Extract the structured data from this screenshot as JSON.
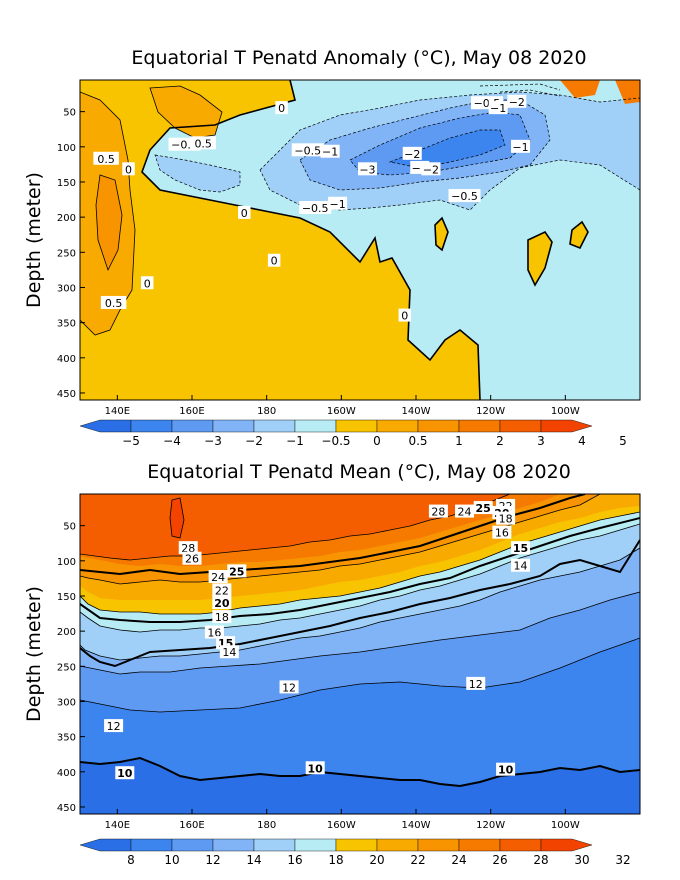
{
  "colors": {
    "anomaly_levels": [
      "#2a6fe6",
      "#3d85ee",
      "#5e9af2",
      "#80b4f6",
      "#a0d0f8",
      "#b8ecf5",
      "#f8c400",
      "#f8aa00",
      "#f79400",
      "#f67a00",
      "#f45e00",
      "#f24400"
    ],
    "mean_levels": [
      "#2a6fe6",
      "#3d85ee",
      "#5e9af2",
      "#80b4f6",
      "#a0d0f8",
      "#b8ecf5",
      "#f8c400",
      "#f8aa00",
      "#f79400",
      "#f67a00",
      "#f45e00",
      "#f24400"
    ]
  },
  "chart_data": [
    {
      "type": "heatmap",
      "title": "Equatorial T Penatd Anomaly (°C), May 08 2020",
      "xlabel": "",
      "ylabel": "Depth (meter)",
      "x_ticks": [
        "140E",
        "160E",
        "180",
        "160W",
        "140W",
        "120W",
        "100W"
      ],
      "x_tick_values": [
        140,
        160,
        180,
        200,
        220,
        240,
        260
      ],
      "xlim": [
        130,
        280
      ],
      "y_ticks": [
        "50",
        "100",
        "150",
        "200",
        "250",
        "300",
        "350",
        "400",
        "450"
      ],
      "y_tick_values": [
        50,
        100,
        150,
        200,
        250,
        300,
        350,
        400,
        450
      ],
      "ylim": [
        5,
        460
      ],
      "colorbar_levels": [
        "-5",
        "-4",
        "-3",
        "-2",
        "-1",
        "-0.5",
        "0",
        "0.5",
        "1",
        "2",
        "3",
        "4",
        "5"
      ],
      "contour_labels": [
        {
          "text": "0",
          "lon": 184,
          "depth": 45
        },
        {
          "text": "-0.5",
          "lon": 191,
          "depth": 105
        },
        {
          "text": "-1",
          "lon": 197,
          "depth": 107
        },
        {
          "text": "0.5",
          "lon": 137,
          "depth": 117
        },
        {
          "text": "-0.5",
          "lon": 158,
          "depth": 97
        },
        {
          "text": "0.5",
          "lon": 163,
          "depth": 95
        },
        {
          "text": "0",
          "lon": 143,
          "depth": 132
        },
        {
          "text": "-2",
          "lon": 219,
          "depth": 110
        },
        {
          "text": "-2",
          "lon": 221,
          "depth": 130
        },
        {
          "text": "-0.5",
          "lon": 239,
          "depth": 38
        },
        {
          "text": "-1",
          "lon": 242,
          "depth": 45
        },
        {
          "text": "-2",
          "lon": 247,
          "depth": 36
        },
        {
          "text": "-1",
          "lon": 248,
          "depth": 100
        },
        {
          "text": "-3",
          "lon": 207,
          "depth": 132
        },
        {
          "text": "-2",
          "lon": 224,
          "depth": 132
        },
        {
          "text": "-0.5",
          "lon": 233,
          "depth": 170
        },
        {
          "text": "-0.5",
          "lon": 193,
          "depth": 187
        },
        {
          "text": "-1",
          "lon": 199,
          "depth": 181
        },
        {
          "text": "0",
          "lon": 174,
          "depth": 194
        },
        {
          "text": "0",
          "lon": 182,
          "depth": 262
        },
        {
          "text": "0",
          "lon": 148,
          "depth": 294
        },
        {
          "text": "0.5",
          "lon": 139,
          "depth": 322
        },
        {
          "text": "0",
          "lon": 217,
          "depth": 340
        }
      ]
    },
    {
      "type": "heatmap",
      "title": "Equatorial T Penatd Mean (°C), May 08 2020",
      "xlabel": "",
      "ylabel": "Depth (meter)",
      "x_ticks": [
        "140E",
        "160E",
        "180",
        "160W",
        "140W",
        "120W",
        "100W"
      ],
      "x_tick_values": [
        140,
        160,
        180,
        200,
        220,
        240,
        260
      ],
      "xlim": [
        130,
        280
      ],
      "y_ticks": [
        "50",
        "100",
        "150",
        "200",
        "250",
        "300",
        "350",
        "400",
        "450"
      ],
      "y_tick_values": [
        50,
        100,
        150,
        200,
        250,
        300,
        350,
        400,
        450
      ],
      "ylim": [
        5,
        460
      ],
      "colorbar_levels": [
        "8",
        "10",
        "12",
        "14",
        "16",
        "18",
        "20",
        "22",
        "24",
        "26",
        "28",
        "30",
        "32"
      ],
      "contour_labels": [
        {
          "text": "28",
          "lon": 226,
          "depth": 30,
          "bold": false
        },
        {
          "text": "24",
          "lon": 233,
          "depth": 30,
          "bold": false
        },
        {
          "text": "25",
          "lon": 238,
          "depth": 25,
          "bold": true
        },
        {
          "text": "22",
          "lon": 244,
          "depth": 22,
          "bold": false
        },
        {
          "text": "20",
          "lon": 243,
          "depth": 32,
          "bold": true
        },
        {
          "text": "18",
          "lon": 244,
          "depth": 40,
          "bold": false
        },
        {
          "text": "16",
          "lon": 243,
          "depth": 60,
          "bold": false
        },
        {
          "text": "15",
          "lon": 248,
          "depth": 82,
          "bold": true
        },
        {
          "text": "14",
          "lon": 248,
          "depth": 107,
          "bold": false
        },
        {
          "text": "28",
          "lon": 159,
          "depth": 82,
          "bold": false
        },
        {
          "text": "26",
          "lon": 160,
          "depth": 97,
          "bold": false
        },
        {
          "text": "24",
          "lon": 167,
          "depth": 123,
          "bold": false
        },
        {
          "text": "25",
          "lon": 172,
          "depth": 115,
          "bold": true
        },
        {
          "text": "22",
          "lon": 168,
          "depth": 142,
          "bold": false
        },
        {
          "text": "20",
          "lon": 168,
          "depth": 160,
          "bold": true
        },
        {
          "text": "18",
          "lon": 168,
          "depth": 180,
          "bold": false
        },
        {
          "text": "16",
          "lon": 166,
          "depth": 202,
          "bold": false
        },
        {
          "text": "15",
          "lon": 169,
          "depth": 217,
          "bold": true
        },
        {
          "text": "14",
          "lon": 170,
          "depth": 230,
          "bold": false
        },
        {
          "text": "12",
          "lon": 186,
          "depth": 280,
          "bold": false
        },
        {
          "text": "12",
          "lon": 236,
          "depth": 275,
          "bold": false
        },
        {
          "text": "12",
          "lon": 139,
          "depth": 335,
          "bold": false
        },
        {
          "text": "10",
          "lon": 142,
          "depth": 402,
          "bold": true
        },
        {
          "text": "10",
          "lon": 193,
          "depth": 395,
          "bold": true
        },
        {
          "text": "10",
          "lon": 244,
          "depth": 397,
          "bold": true
        }
      ]
    }
  ]
}
